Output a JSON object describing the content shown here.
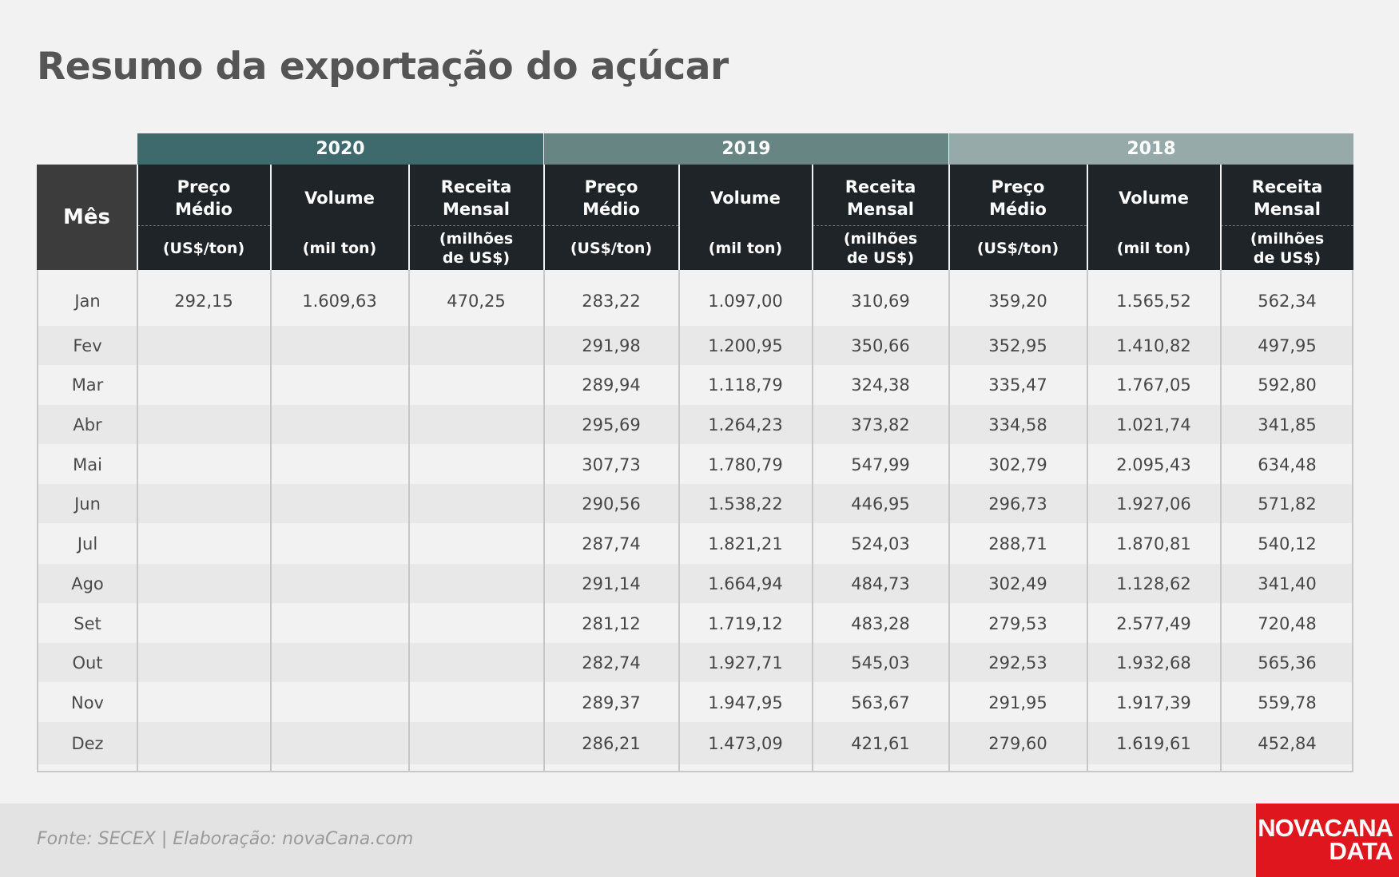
{
  "title": "Resumo da exportação do açúcar",
  "month_header": "Mês",
  "years": [
    "2020",
    "2019",
    "2018"
  ],
  "columns": [
    {
      "label": "Preço\nMédio",
      "unit": "(US$/ton)"
    },
    {
      "label": "Volume",
      "unit": "(mil ton)"
    },
    {
      "label": "Receita\nMensal",
      "unit": "(milhões\nde US$)"
    }
  ],
  "rows": [
    {
      "month": "Jan",
      "values": [
        "292,15",
        "1.609,63",
        "470,25",
        "283,22",
        "1.097,00",
        "310,69",
        "359,20",
        "1.565,52",
        "562,34"
      ]
    },
    {
      "month": "Fev",
      "values": [
        "",
        "",
        "",
        "291,98",
        "1.200,95",
        "350,66",
        "352,95",
        "1.410,82",
        "497,95"
      ]
    },
    {
      "month": "Mar",
      "values": [
        "",
        "",
        "",
        "289,94",
        "1.118,79",
        "324,38",
        "335,47",
        "1.767,05",
        "592,80"
      ]
    },
    {
      "month": "Abr",
      "values": [
        "",
        "",
        "",
        "295,69",
        "1.264,23",
        "373,82",
        "334,58",
        "1.021,74",
        "341,85"
      ]
    },
    {
      "month": "Mai",
      "values": [
        "",
        "",
        "",
        "307,73",
        "1.780,79",
        "547,99",
        "302,79",
        "2.095,43",
        "634,48"
      ]
    },
    {
      "month": "Jun",
      "values": [
        "",
        "",
        "",
        "290,56",
        "1.538,22",
        "446,95",
        "296,73",
        "1.927,06",
        "571,82"
      ]
    },
    {
      "month": "Jul",
      "values": [
        "",
        "",
        "",
        "287,74",
        "1.821,21",
        "524,03",
        "288,71",
        "1.870,81",
        "540,12"
      ]
    },
    {
      "month": "Ago",
      "values": [
        "",
        "",
        "",
        "291,14",
        "1.664,94",
        "484,73",
        "302,49",
        "1.128,62",
        "341,40"
      ]
    },
    {
      "month": "Set",
      "values": [
        "",
        "",
        "",
        "281,12",
        "1.719,12",
        "483,28",
        "279,53",
        "2.577,49",
        "720,48"
      ]
    },
    {
      "month": "Out",
      "values": [
        "",
        "",
        "",
        "282,74",
        "1.927,71",
        "545,03",
        "292,53",
        "1.932,68",
        "565,36"
      ]
    },
    {
      "month": "Nov",
      "values": [
        "",
        "",
        "",
        "289,37",
        "1.947,95",
        "563,67",
        "291,95",
        "1.917,39",
        "559,78"
      ]
    },
    {
      "month": "Dez",
      "values": [
        "",
        "",
        "",
        "286,21",
        "1.473,09",
        "421,61",
        "279,60",
        "1.619,61",
        "452,84"
      ]
    }
  ],
  "source": "Fonte: SECEX | Elaboração: novaCana.com",
  "logo": {
    "line1": "NOVACANA",
    "line2": "DATA"
  },
  "colors": {
    "year_2020": "#3e6a6d",
    "year_2019": "#668583",
    "year_2018": "#96aaaa",
    "header_bg": "#1e2427",
    "logo_red": "#e0161f"
  }
}
